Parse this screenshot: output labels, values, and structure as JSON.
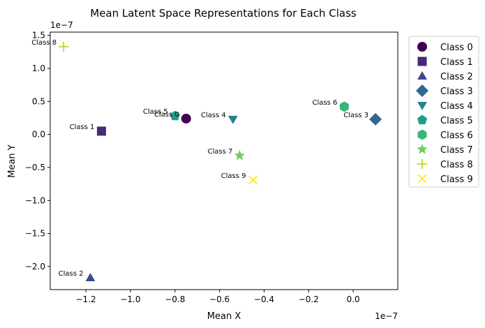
{
  "chart_data": {
    "type": "scatter",
    "title": "Mean Latent Space Representations for Each Class",
    "xlabel": "Mean X",
    "ylabel": "Mean Y",
    "x_offset_label": "1e−7",
    "y_offset_label": "1e−7",
    "xlim": [
      -1.36,
      0.2
    ],
    "ylim": [
      -2.35,
      1.55
    ],
    "x_ticks": [
      -1.2,
      -1.0,
      -0.8,
      -0.6,
      -0.4,
      -0.2,
      0.0
    ],
    "x_tick_labels": [
      "−1.2",
      "−1.0",
      "−0.8",
      "−0.6",
      "−0.4",
      "−0.2",
      "0.0"
    ],
    "y_ticks": [
      -2.0,
      -1.5,
      -1.0,
      -0.5,
      0.0,
      0.5,
      1.0,
      1.5
    ],
    "y_tick_labels": [
      "−2.0",
      "−1.5",
      "−1.0",
      "−0.5",
      "0.0",
      "0.5",
      "1.0",
      "1.5"
    ],
    "grid": false,
    "legend_position": "outside-right",
    "series": [
      {
        "name": "Class 0",
        "x": -0.75,
        "y": 0.24,
        "marker": "circle",
        "color": "#440154"
      },
      {
        "name": "Class 1",
        "x": -1.13,
        "y": 0.05,
        "marker": "square",
        "color": "#482878"
      },
      {
        "name": "Class 2",
        "x": -1.18,
        "y": -2.17,
        "marker": "triangle-up",
        "color": "#3e4989"
      },
      {
        "name": "Class 3",
        "x": 0.1,
        "y": 0.23,
        "marker": "diamond",
        "color": "#31688e"
      },
      {
        "name": "Class 4",
        "x": -0.54,
        "y": 0.23,
        "marker": "triangle-down",
        "color": "#26828e"
      },
      {
        "name": "Class 5",
        "x": -0.8,
        "y": 0.28,
        "marker": "pentagon",
        "color": "#1f9e89"
      },
      {
        "name": "Class 6",
        "x": -0.04,
        "y": 0.42,
        "marker": "hexagon",
        "color": "#35b779"
      },
      {
        "name": "Class 7",
        "x": -0.51,
        "y": -0.32,
        "marker": "star",
        "color": "#6ece58"
      },
      {
        "name": "Class 8",
        "x": -1.3,
        "y": 1.33,
        "marker": "plus",
        "color": "#b5de2b"
      },
      {
        "name": "Class 9",
        "x": -0.45,
        "y": -0.69,
        "marker": "x",
        "color": "#fde725"
      }
    ]
  }
}
